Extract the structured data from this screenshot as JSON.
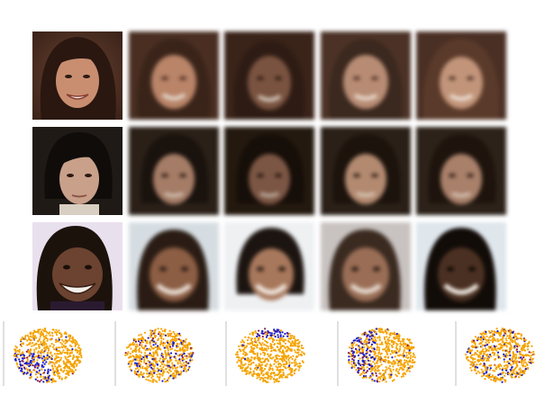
{
  "grid": {
    "rows": 3,
    "columns": 5,
    "row_subjects": [
      "woman-dark-hair",
      "young-man-dark-hair",
      "smiling-man-braids"
    ],
    "column_kind": [
      "original-photo",
      "reconstruction",
      "reconstruction",
      "reconstruction",
      "reconstruction"
    ]
  },
  "palette": {
    "skin_row1": "#c98e70",
    "skin_row2": "#c9a08a",
    "skin_row3": "#6b4330",
    "hair_dark": "#2a1a12",
    "bg_row1": "#4a2e22",
    "bg_row2": "#1f1a16",
    "bg_row3": "#e9e0ee",
    "scatter_majority": "#f5a300",
    "scatter_minority_a": "#1a1acc",
    "scatter_minority_b": "#8a2050"
  },
  "scatter_panels": [
    {
      "name": "panel-1",
      "highlight": "bottom-left"
    },
    {
      "name": "panel-2",
      "highlight": "scattered"
    },
    {
      "name": "panel-3",
      "highlight": "top"
    },
    {
      "name": "panel-4",
      "highlight": "left"
    },
    {
      "name": "panel-5",
      "highlight": "scattered"
    }
  ]
}
